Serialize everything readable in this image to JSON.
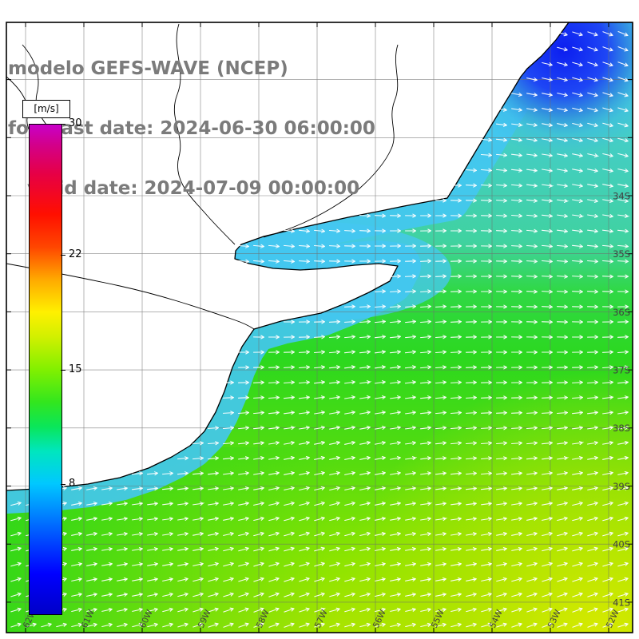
{
  "title": {
    "line1": "modelo GEFS-WAVE (NCEP)",
    "line2": "forecast date: 2024-06-30 06:00:00",
    "line3": "   valid date: 2024-07-09 00:00:00",
    "color": "#7b7b7b"
  },
  "colorbar": {
    "unit_label": "[m/s]",
    "min": 0,
    "max": 30,
    "tick_labels": [
      "30",
      "22",
      "15",
      "8"
    ],
    "tick_values": [
      30,
      22,
      15,
      8
    ],
    "gradient_stops": [
      {
        "value": 0,
        "color": "#0000c8"
      },
      {
        "value": 2.5,
        "color": "#0000ff"
      },
      {
        "value": 5,
        "color": "#005aff"
      },
      {
        "value": 8,
        "color": "#00c8ff"
      },
      {
        "value": 10,
        "color": "#00e6be"
      },
      {
        "value": 11.5,
        "color": "#0ae65a"
      },
      {
        "value": 13,
        "color": "#32e61e"
      },
      {
        "value": 15,
        "color": "#82f000"
      },
      {
        "value": 17,
        "color": "#d2f000"
      },
      {
        "value": 18.5,
        "color": "#fff000"
      },
      {
        "value": 20.5,
        "color": "#ffaa00"
      },
      {
        "value": 22.5,
        "color": "#ff4600"
      },
      {
        "value": 24.5,
        "color": "#ff0f00"
      },
      {
        "value": 27,
        "color": "#e60046"
      },
      {
        "value": 28.8,
        "color": "#d2008c"
      },
      {
        "value": 30,
        "color": "#c800c8"
      }
    ]
  },
  "map": {
    "lat_labels": [
      "34S",
      "35S",
      "36S",
      "37S",
      "38S",
      "39S",
      "40S",
      "41S"
    ],
    "lon_labels": [
      "62W",
      "61W",
      "60W",
      "59W",
      "58W",
      "57W",
      "56W",
      "55W",
      "54W",
      "53W",
      "52W"
    ],
    "arrow_color": "#ffffff",
    "land_color": "#ffffff",
    "coast_color": "#000000",
    "grid_color": "#6e6e6e",
    "label_color": "#404040",
    "field_colors": {
      "low_wind_blue": "#0c28f0",
      "coastal_cyan": "#44c6f2",
      "offshore_green": "#2cd41e",
      "high_yellow_green": "#a0e400",
      "corner_yellow": "#dcea00"
    }
  }
}
